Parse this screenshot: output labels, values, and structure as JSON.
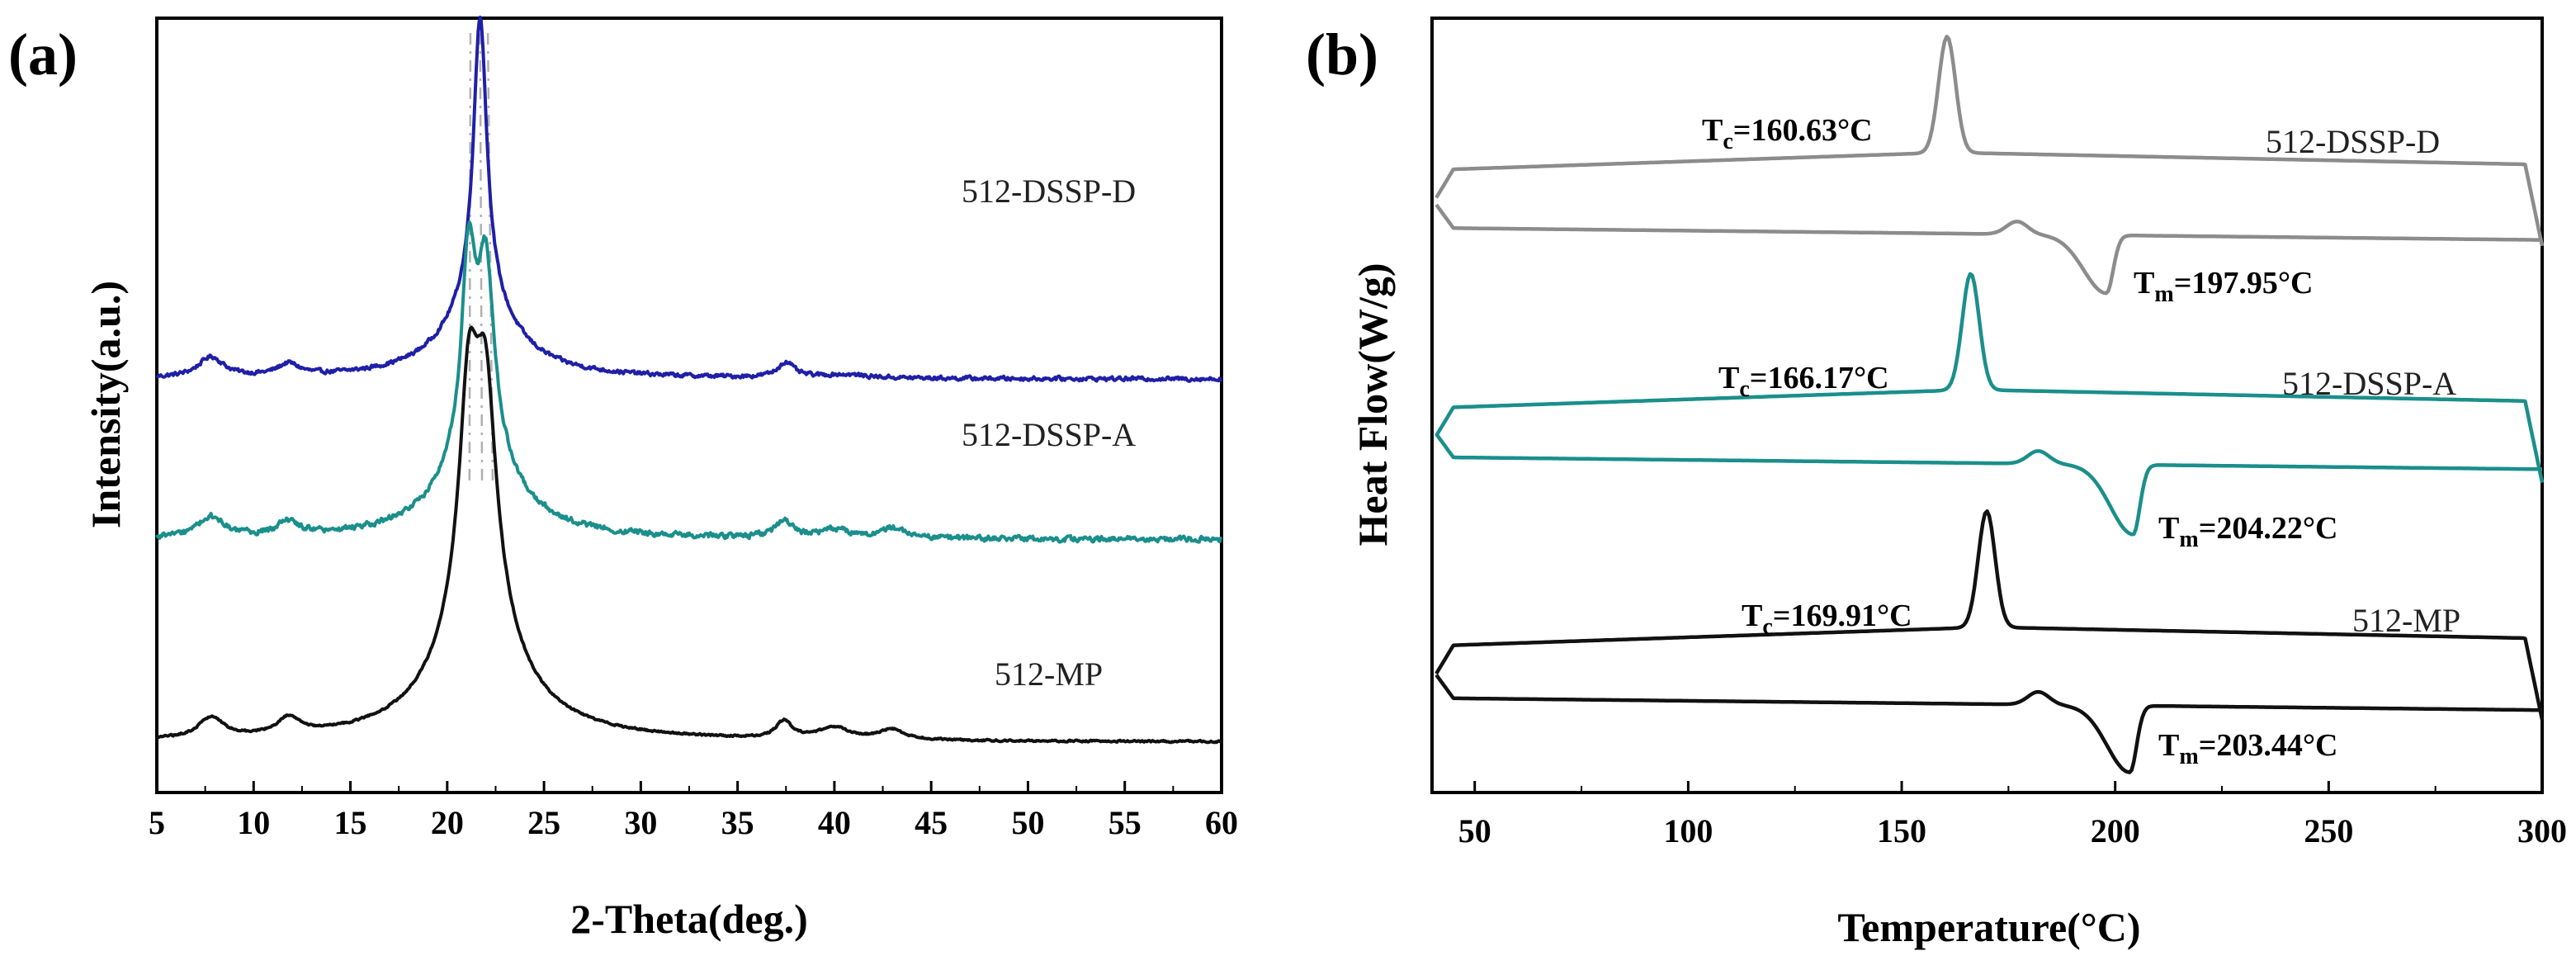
{
  "chart_data": [
    {
      "panel": "(a)",
      "type": "line",
      "xlabel": "2-Theta(deg.)",
      "ylabel": "Intensity(a.u.)",
      "xlim": [
        5,
        60
      ],
      "xticks": [
        "5",
        "10",
        "15",
        "20",
        "25",
        "30",
        "35",
        "40",
        "45",
        "50",
        "55",
        "60"
      ],
      "y_ticks_shown": false,
      "reference_lines_deg": [
        21.2,
        21.7,
        22.1
      ],
      "series": [
        {
          "name": "512-DSSP-D",
          "color": "#1f1fa8",
          "baseline": 0.95,
          "peaks": [
            [
              7.8,
              0.12,
              0.8
            ],
            [
              11.8,
              0.07,
              0.7
            ],
            [
              21.7,
              1.7,
              0.42
            ],
            [
              21.7,
              0.45,
              2.2
            ],
            [
              37.5,
              0.09,
              0.5
            ],
            [
              40.5,
              0.02,
              1.5
            ]
          ],
          "noise": 0.018
        },
        {
          "name": "512-DSSP-A",
          "color": "#1a8f8b",
          "baseline": 0.0,
          "peaks": [
            [
              7.8,
              0.12,
              0.8
            ],
            [
              11.8,
              0.08,
              0.7
            ],
            [
              21.1,
              1.1,
              0.42
            ],
            [
              22.0,
              1.05,
              0.5
            ],
            [
              21.6,
              0.55,
              2.2
            ],
            [
              37.4,
              0.1,
              0.5
            ],
            [
              40.0,
              0.05,
              1.0
            ],
            [
              43.0,
              0.06,
              0.8
            ]
          ],
          "noise": 0.025
        },
        {
          "name": "512-MP",
          "color": "#111111",
          "baseline": -1.2,
          "peaks": [
            [
              7.8,
              0.12,
              0.8
            ],
            [
              11.8,
              0.1,
              0.7
            ],
            [
              21.1,
              1.0,
              0.55
            ],
            [
              22.0,
              0.95,
              0.6
            ],
            [
              21.6,
              0.9,
              1.5
            ],
            [
              21.6,
              0.3,
              3.2
            ],
            [
              37.4,
              0.1,
              0.5
            ],
            [
              40.0,
              0.07,
              1.0
            ],
            [
              43.0,
              0.06,
              0.8
            ]
          ],
          "noise": 0.008
        }
      ]
    },
    {
      "panel": "(b)",
      "type": "line",
      "xlabel": "Temperature(°C)",
      "ylabel": "Heat Flow(W/g)",
      "xlim": [
        40,
        300
      ],
      "xticks": [
        "50",
        "100",
        "150",
        "200",
        "250",
        "300"
      ],
      "y_ticks_shown": false,
      "series": [
        {
          "name": "512-DSSP-D",
          "color": "#8c8c8c",
          "cooling": {
            "baseline": 10.0,
            "peak_temp": 160.63,
            "peak_height": 2.0
          },
          "heating": {
            "baseline": 9.0,
            "melt_temp": 197.95,
            "melt_depth": 1.0,
            "pre_peak_temp": 177
          }
        },
        {
          "name": "512-DSSP-A",
          "color": "#1a8f8b",
          "cooling": {
            "baseline": 5.9,
            "peak_temp": 166.17,
            "peak_height": 2.0
          },
          "heating": {
            "baseline": 5.05,
            "melt_temp": 204.22,
            "melt_depth": 1.2,
            "pre_peak_temp": 182
          }
        },
        {
          "name": "512-MP",
          "color": "#111111",
          "cooling": {
            "baseline": 1.8,
            "peak_temp": 169.91,
            "peak_height": 2.0
          },
          "heating": {
            "baseline": 0.9,
            "melt_temp": 203.44,
            "melt_depth": 1.15,
            "pre_peak_temp": 182
          }
        }
      ],
      "annotations": [
        {
          "id": "tc-dssp-d",
          "main": "T",
          "sub": "c",
          "value": "=160.63°C"
        },
        {
          "id": "tm-dssp-d",
          "main": "T",
          "sub": "m",
          "value": "=197.95°C"
        },
        {
          "id": "tc-dssp-a",
          "main": "T",
          "sub": "c",
          "value": "=166.17°C"
        },
        {
          "id": "tm-dssp-a",
          "main": "T",
          "sub": "m",
          "value": "=204.22°C"
        },
        {
          "id": "tc-mp",
          "main": "T",
          "sub": "c",
          "value": "=169.91°C"
        },
        {
          "id": "tm-mp",
          "main": "T",
          "sub": "m",
          "value": "=203.44°C"
        }
      ]
    }
  ]
}
